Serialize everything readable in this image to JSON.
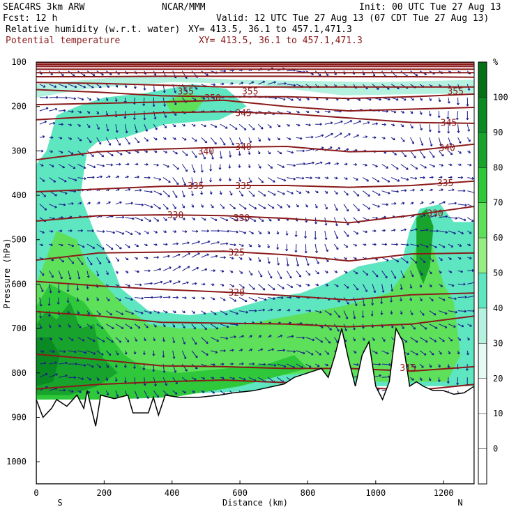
{
  "header": {
    "model": "SEAC4RS  3km ARW",
    "org": "NCAR/MMM",
    "init": "Init: 00 UTC Tue 27 Aug 13",
    "fcst": "Fcst:   12 h",
    "valid": "Valid: 12 UTC Tue 27 Aug 13 (07 CDT Tue 27 Aug 13)",
    "field1": "Relative humidity (w.r.t. water)",
    "xy1": "XY= 413.5, 36.1 to 457.1,471.3",
    "field2": "Potential temperature",
    "xy2": "XY= 413.5, 36.1 to 457.1,471.3"
  },
  "colors": {
    "theta": "#8b1a1a",
    "wind": "#1a1a8c",
    "terrain": "#ffffff"
  },
  "chart_data": {
    "type": "heatmap",
    "title": "Relative humidity (w.r.t. water)",
    "overlay": "Potential temperature",
    "xlabel": "Distance (km)",
    "ylabel": "Pressure (hPa)",
    "xlim": [
      0,
      1290
    ],
    "ylim": [
      1050,
      100
    ],
    "x_ticks": [
      0,
      200,
      400,
      600,
      800,
      1000,
      1200
    ],
    "y_ticks": [
      100,
      200,
      300,
      400,
      500,
      600,
      700,
      800,
      900,
      1000
    ],
    "x_end_labels": {
      "left": "S",
      "right": "N"
    },
    "colorbar": {
      "unit": "%",
      "labels": [
        0,
        10,
        20,
        30,
        40,
        50,
        60,
        70,
        80,
        90,
        100
      ],
      "colors": [
        "#ffffff",
        "#ffffff",
        "#ffffff",
        "#e4faf2",
        "#b4f2df",
        "#5ee6c0",
        "#96ee82",
        "#5ee05a",
        "#2ec83a",
        "#18a42c",
        "#0a8a22",
        "#067018"
      ]
    },
    "theta_labels": [
      {
        "v": 355,
        "x": 440,
        "p": 165
      },
      {
        "v": 355,
        "x": 630,
        "p": 165
      },
      {
        "v": 355,
        "x": 1235,
        "p": 165
      },
      {
        "v": 350,
        "x": 520,
        "p": 180
      },
      {
        "v": 345,
        "x": 610,
        "p": 214
      },
      {
        "v": 345,
        "x": 1215,
        "p": 236
      },
      {
        "v": 340,
        "x": 500,
        "p": 300
      },
      {
        "v": 340,
        "x": 610,
        "p": 290
      },
      {
        "v": 340,
        "x": 1210,
        "p": 292
      },
      {
        "v": 335,
        "x": 470,
        "p": 378
      },
      {
        "v": 335,
        "x": 610,
        "p": 378
      },
      {
        "v": 335,
        "x": 1205,
        "p": 372
      },
      {
        "v": 330,
        "x": 410,
        "p": 444
      },
      {
        "v": 330,
        "x": 605,
        "p": 450
      },
      {
        "v": 330,
        "x": 1175,
        "p": 440
      },
      {
        "v": 325,
        "x": 590,
        "p": 528
      },
      {
        "v": 320,
        "x": 590,
        "p": 618
      },
      {
        "v": 315,
        "x": 1095,
        "p": 788
      }
    ],
    "theta_contours": [
      {
        "p": [
          102,
          102,
          102,
          102,
          102,
          102,
          102,
          102
        ]
      },
      {
        "p": [
          106,
          106,
          106,
          106,
          106,
          106,
          106,
          106
        ]
      },
      {
        "p": [
          110,
          110,
          110,
          110,
          110,
          110,
          110,
          110
        ]
      },
      {
        "p": [
          116,
          116,
          116,
          116,
          116,
          116,
          116,
          116
        ]
      },
      {
        "p": [
          124,
          124,
          124,
          124,
          124,
          124,
          124,
          124
        ]
      },
      {
        "p": [
          133,
          133,
          132,
          132,
          132,
          133,
          133,
          134
        ]
      },
      {
        "p": [
          146,
          148,
          152,
          156,
          156,
          156,
          156,
          156
        ]
      },
      {
        "p": [
          162,
          168,
          176,
          178,
          178,
          182,
          178,
          172
        ]
      },
      {
        "p": [
          196,
          193,
          190,
          186,
          200,
          210,
          206,
          202
        ]
      },
      {
        "p": [
          230,
          222,
          214,
          212,
          216,
          226,
          236,
          238
        ]
      },
      {
        "p": [
          320,
          302,
          296,
          292,
          290,
          302,
          300,
          285
        ]
      },
      {
        "p": [
          392,
          386,
          380,
          378,
          378,
          382,
          378,
          368
        ]
      },
      {
        "p": [
          458,
          446,
          444,
          446,
          452,
          462,
          445,
          425
        ]
      },
      {
        "p": [
          546,
          530,
          528,
          526,
          534,
          548,
          532,
          530
        ]
      },
      {
        "p": [
          594,
          604,
          612,
          618,
          626,
          636,
          624,
          620
        ]
      },
      {
        "p": [
          662,
          672,
          686,
          688,
          690,
          696,
          690,
          672
        ]
      },
      {
        "p": [
          758,
          770,
          784,
          786,
          790,
          790,
          796,
          786
        ]
      },
      {
        "p": [
          836,
          826,
          820,
          816,
          822,
          830,
          840,
          826
        ]
      }
    ],
    "terrain_p": [
      [
        0,
        1050
      ],
      [
        0,
        860
      ],
      [
        20,
        900
      ],
      [
        45,
        880
      ],
      [
        60,
        860
      ],
      [
        90,
        875
      ],
      [
        120,
        850
      ],
      [
        140,
        880
      ],
      [
        150,
        840
      ],
      [
        175,
        920
      ],
      [
        190,
        850
      ],
      [
        230,
        858
      ],
      [
        270,
        850
      ],
      [
        285,
        890
      ],
      [
        330,
        890
      ],
      [
        345,
        855
      ],
      [
        360,
        895
      ],
      [
        380,
        850
      ],
      [
        420,
        855
      ],
      [
        480,
        855
      ],
      [
        540,
        850
      ],
      [
        580,
        845
      ],
      [
        640,
        840
      ],
      [
        700,
        830
      ],
      [
        730,
        825
      ],
      [
        760,
        810
      ],
      [
        800,
        800
      ],
      [
        840,
        790
      ],
      [
        860,
        810
      ],
      [
        880,
        760
      ],
      [
        900,
        700
      ],
      [
        920,
        770
      ],
      [
        940,
        830
      ],
      [
        960,
        760
      ],
      [
        980,
        730
      ],
      [
        1000,
        830
      ],
      [
        1020,
        860
      ],
      [
        1040,
        820
      ],
      [
        1060,
        700
      ],
      [
        1080,
        730
      ],
      [
        1100,
        830
      ],
      [
        1120,
        820
      ],
      [
        1140,
        830
      ],
      [
        1170,
        840
      ],
      [
        1200,
        840
      ],
      [
        1230,
        848
      ],
      [
        1260,
        845
      ],
      [
        1290,
        830
      ],
      [
        1290,
        1050
      ]
    ],
    "moist_regions": [
      {
        "rh": 45,
        "pts": [
          [
            0,
            330
          ],
          [
            30,
            300
          ],
          [
            60,
            220
          ],
          [
            120,
            200
          ],
          [
            200,
            180
          ],
          [
            320,
            170
          ],
          [
            460,
            150
          ],
          [
            560,
            160
          ],
          [
            620,
            200
          ],
          [
            540,
            230
          ],
          [
            380,
            240
          ],
          [
            260,
            270
          ],
          [
            180,
            280
          ],
          [
            150,
            300
          ],
          [
            130,
            400
          ],
          [
            170,
            480
          ],
          [
            220,
            550
          ],
          [
            250,
            610
          ],
          [
            330,
            660
          ],
          [
            450,
            670
          ],
          [
            560,
            660
          ],
          [
            700,
            630
          ],
          [
            780,
            620
          ],
          [
            850,
            600
          ],
          [
            950,
            560
          ],
          [
            1080,
            540
          ],
          [
            1100,
            480
          ],
          [
            1130,
            430
          ],
          [
            1190,
            420
          ],
          [
            1230,
            460
          ],
          [
            1290,
            460
          ],
          [
            1290,
            830
          ],
          [
            1000,
            830
          ],
          [
            0,
            860
          ]
        ]
      },
      {
        "rh": 30,
        "pts": [
          [
            0,
            150
          ],
          [
            300,
            130
          ],
          [
            600,
            140
          ],
          [
            1000,
            145
          ],
          [
            1290,
            140
          ],
          [
            1290,
            170
          ],
          [
            900,
            175
          ],
          [
            640,
            150
          ],
          [
            400,
            145
          ],
          [
            150,
            160
          ],
          [
            0,
            180
          ]
        ]
      },
      {
        "rh": 65,
        "pts": [
          [
            0,
            600
          ],
          [
            60,
            480
          ],
          [
            120,
            500
          ],
          [
            150,
            560
          ],
          [
            200,
            600
          ],
          [
            260,
            650
          ],
          [
            330,
            690
          ],
          [
            420,
            700
          ],
          [
            520,
            700
          ],
          [
            620,
            690
          ],
          [
            760,
            670
          ],
          [
            900,
            650
          ],
          [
            1040,
            620
          ],
          [
            1100,
            560
          ],
          [
            1140,
            470
          ],
          [
            1170,
            520
          ],
          [
            1200,
            600
          ],
          [
            1230,
            640
          ],
          [
            1250,
            760
          ],
          [
            1210,
            820
          ],
          [
            1100,
            820
          ],
          [
            1000,
            820
          ],
          [
            800,
            800
          ],
          [
            0,
            860
          ]
        ]
      },
      {
        "rh": 75,
        "pts": [
          [
            0,
            650
          ],
          [
            40,
            600
          ],
          [
            90,
            620
          ],
          [
            140,
            640
          ],
          [
            200,
            700
          ],
          [
            260,
            760
          ],
          [
            320,
            790
          ],
          [
            420,
            800
          ],
          [
            560,
            790
          ],
          [
            680,
            780
          ],
          [
            760,
            760
          ],
          [
            800,
            790
          ],
          [
            600,
            830
          ],
          [
            400,
            855
          ],
          [
            200,
            860
          ],
          [
            0,
            860
          ]
        ]
      },
      {
        "rh": 85,
        "pts": [
          [
            0,
            690
          ],
          [
            30,
            660
          ],
          [
            60,
            680
          ],
          [
            100,
            640
          ],
          [
            130,
            700
          ],
          [
            170,
            690
          ],
          [
            190,
            760
          ],
          [
            240,
            800
          ],
          [
            180,
            830
          ],
          [
            100,
            850
          ],
          [
            0,
            850
          ]
        ]
      },
      {
        "rh": 95,
        "pts": [
          [
            0,
            720
          ],
          [
            40,
            720
          ],
          [
            70,
            760
          ],
          [
            50,
            820
          ],
          [
            0,
            830
          ]
        ]
      },
      {
        "rh": 85,
        "pts": [
          [
            1120,
            450
          ],
          [
            1150,
            430
          ],
          [
            1170,
            470
          ],
          [
            1160,
            560
          ],
          [
            1140,
            600
          ],
          [
            1120,
            560
          ]
        ]
      },
      {
        "rh": 65,
        "pts": [
          [
            380,
            190
          ],
          [
            440,
            170
          ],
          [
            500,
            180
          ],
          [
            470,
            210
          ],
          [
            400,
            215
          ]
        ]
      }
    ]
  }
}
